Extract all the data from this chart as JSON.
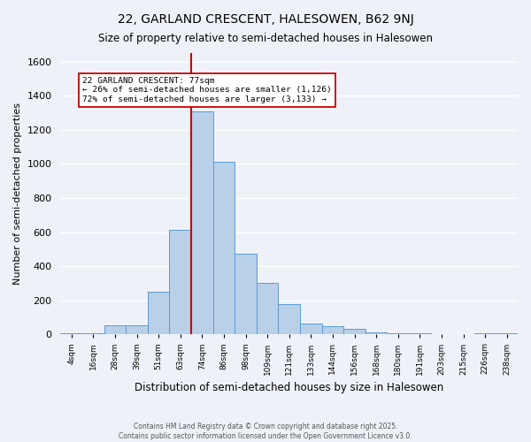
{
  "title": "22, GARLAND CRESCENT, HALESOWEN, B62 9NJ",
  "subtitle": "Size of property relative to semi-detached houses in Halesowen",
  "xlabel": "Distribution of semi-detached houses by size in Halesowen",
  "ylabel": "Number of semi-detached properties",
  "footnote1": "Contains HM Land Registry data © Crown copyright and database right 2025.",
  "footnote2": "Contains public sector information licensed under the Open Government Licence v3.0.",
  "bin_labels": [
    "4sqm",
    "16sqm",
    "28sqm",
    "39sqm",
    "51sqm",
    "63sqm",
    "74sqm",
    "86sqm",
    "98sqm",
    "109sqm",
    "121sqm",
    "133sqm",
    "144sqm",
    "156sqm",
    "168sqm",
    "180sqm",
    "191sqm",
    "203sqm",
    "215sqm",
    "226sqm",
    "238sqm"
  ],
  "bar_heights": [
    8,
    8,
    55,
    55,
    250,
    615,
    1310,
    1010,
    475,
    300,
    180,
    65,
    50,
    30,
    12,
    8,
    4,
    3,
    3,
    8,
    4
  ],
  "bar_color": "#b8d0e8",
  "bar_edge_color": "#5b9bd5",
  "property_bin_index": 6,
  "vline_color": "#cc0000",
  "annotation_text": "22 GARLAND CRESCENT: 77sqm\n← 26% of semi-detached houses are smaller (1,126)\n72% of semi-detached houses are larger (3,133) →",
  "annotation_box_edge": "#cc0000",
  "annotation_box_facecolor": "#ffffff",
  "ylim": [
    0,
    1650
  ],
  "yticks": [
    0,
    200,
    400,
    600,
    800,
    1000,
    1200,
    1400,
    1600
  ],
  "background_color": "#eef2f8",
  "plot_background": "#eef2f8"
}
